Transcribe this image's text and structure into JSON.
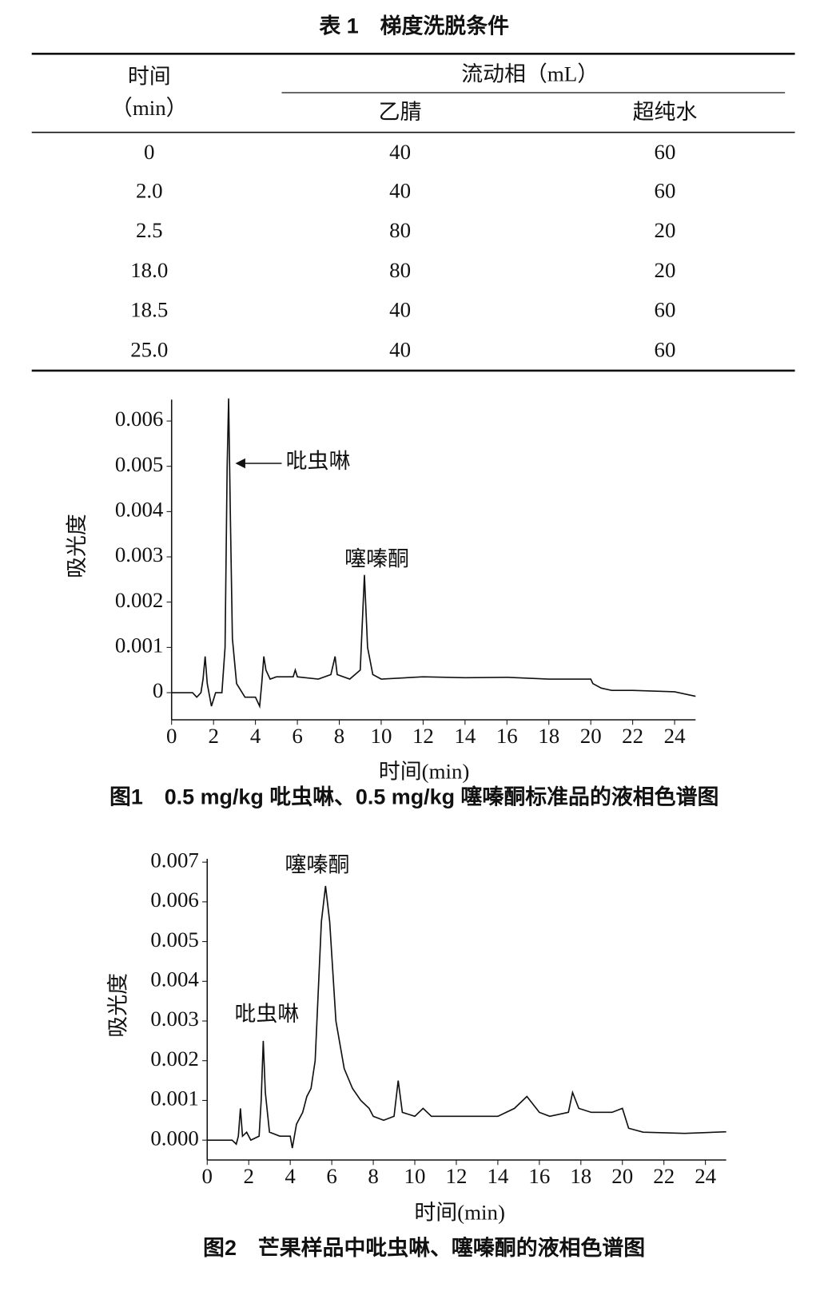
{
  "table": {
    "title": "表 1　梯度洗脱条件",
    "header": {
      "time": "时间",
      "time_unit": "（min）",
      "mobile_phase": "流动相（mL）",
      "columns": [
        "乙腈",
        "超纯水"
      ]
    },
    "rows": [
      [
        "0",
        "40",
        "60"
      ],
      [
        "2.0",
        "40",
        "60"
      ],
      [
        "2.5",
        "80",
        "20"
      ],
      [
        "18.0",
        "80",
        "20"
      ],
      [
        "18.5",
        "40",
        "60"
      ],
      [
        "25.0",
        "40",
        "60"
      ]
    ]
  },
  "chart_data": [
    {
      "type": "line",
      "caption": "图1　0.5 mg/kg 吡虫啉、0.5 mg/kg 噻嗪酮标准品的液相色谱图",
      "x_label": "时间(min)",
      "y_label": "吸光度",
      "annotations": [
        "吡虫啉",
        "噻嗪酮"
      ],
      "x": [
        0,
        1.0,
        1.2,
        1.4,
        1.5,
        1.6,
        1.7,
        1.9,
        2.1,
        2.4,
        2.55,
        2.65,
        2.72,
        2.8,
        2.9,
        3.1,
        3.5,
        4.0,
        4.2,
        4.3,
        4.4,
        4.5,
        4.7,
        5.0,
        5.8,
        5.9,
        6.0,
        7.0,
        7.6,
        7.8,
        7.9,
        8.5,
        9.0,
        9.2,
        9.35,
        9.6,
        10,
        12,
        14,
        16,
        18,
        20,
        20.1,
        20.5,
        21,
        22,
        24,
        25
      ],
      "series": [
        {
          "color": "#111111",
          "values": [
            0,
            0,
            -0.0001,
            0,
            0.0003,
            0.0008,
            0.0002,
            -0.0003,
            0,
            0,
            0.001,
            0.005,
            0.0065,
            0.004,
            0.0012,
            0.0002,
            -0.0001,
            -0.0001,
            -0.0003,
            0.0002,
            0.0008,
            0.0005,
            0.0003,
            0.00035,
            0.00035,
            0.0005,
            0.00035,
            0.0003,
            0.0004,
            0.0008,
            0.0004,
            0.0003,
            0.0005,
            0.0026,
            0.001,
            0.0004,
            0.0003,
            0.00035,
            0.00033,
            0.00034,
            0.0003,
            0.0003,
            0.0002,
            0.0001,
            5e-05,
            5e-05,
            2e-05,
            -8e-05
          ]
        }
      ],
      "xlim": [
        0,
        25
      ],
      "ylim": [
        -0.0006,
        0.0064
      ],
      "xticks": [
        0,
        2,
        4,
        6,
        8,
        10,
        12,
        14,
        16,
        18,
        20,
        22,
        24
      ],
      "yticks": [
        0,
        0.001,
        0.002,
        0.003,
        0.004,
        0.005,
        0.006
      ]
    },
    {
      "type": "line",
      "caption": "图2　芒果样品中吡虫啉、噻嗪酮的液相色谱图",
      "x_label": "时间(min)",
      "y_label": "吸光度",
      "annotations": [
        "噻嗪酮",
        "吡虫啉"
      ],
      "x": [
        0,
        1.2,
        1.4,
        1.5,
        1.6,
        1.7,
        1.9,
        2.1,
        2.5,
        2.6,
        2.7,
        2.8,
        3.0,
        3.5,
        4.0,
        4.1,
        4.3,
        4.6,
        4.8,
        5.0,
        5.2,
        5.5,
        5.7,
        5.9,
        6.2,
        6.6,
        7.0,
        7.4,
        7.8,
        8.0,
        8.5,
        9.0,
        9.2,
        9.4,
        10,
        10.4,
        10.8,
        12,
        13,
        14,
        14.8,
        15.4,
        16,
        16.5,
        17.4,
        17.6,
        17.9,
        18.5,
        19.5,
        20,
        20.3,
        21,
        23,
        25
      ],
      "series": [
        {
          "color": "#111111",
          "values": [
            0,
            0,
            -0.0001,
            0.0001,
            0.0008,
            0.0001,
            0.0002,
            0,
            0.0001,
            0.001,
            0.0025,
            0.0012,
            0.0002,
            0.0001,
            0.0001,
            -0.0002,
            0.0004,
            0.0007,
            0.0011,
            0.0013,
            0.002,
            0.0055,
            0.0064,
            0.0055,
            0.003,
            0.0018,
            0.0013,
            0.001,
            0.0008,
            0.0006,
            0.0005,
            0.0006,
            0.0015,
            0.0007,
            0.0006,
            0.0008,
            0.0006,
            0.0006,
            0.0006,
            0.0006,
            0.0008,
            0.0011,
            0.0007,
            0.0006,
            0.0007,
            0.0012,
            0.0008,
            0.0007,
            0.0007,
            0.0008,
            0.0003,
            0.0002,
            0.00017,
            0.00021
          ]
        }
      ],
      "xlim": [
        0,
        25
      ],
      "ylim": [
        -0.0005,
        0.007
      ],
      "xticks": [
        0,
        2,
        4,
        6,
        8,
        10,
        12,
        14,
        16,
        18,
        20,
        22,
        24
      ],
      "yticks": [
        {
          "value": 0,
          "label": "0.000"
        },
        0.001,
        0.002,
        0.003,
        0.004,
        0.005,
        0.006,
        0.007
      ]
    }
  ]
}
